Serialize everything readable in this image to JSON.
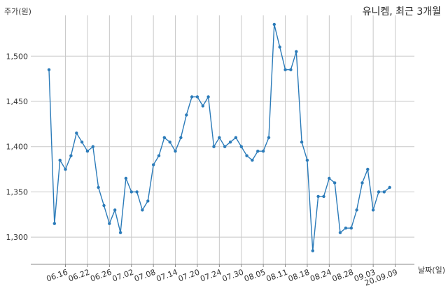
{
  "chart_data": {
    "type": "line",
    "title": "유니켐, 최근 3개월",
    "ylabel": "주가(원)",
    "xlabel": "날짜(일)",
    "ylim": [
      1270,
      1545
    ],
    "yticks": [
      1300,
      1350,
      1400,
      1450,
      1500
    ],
    "ytick_labels": [
      "1,300",
      "1,350",
      "1,400",
      "1,450",
      "1,500"
    ],
    "xtick_labels": [
      "06.16",
      "06.22",
      "06.26",
      "07.02",
      "07.08",
      "07.14",
      "07.20",
      "07.24",
      "07.30",
      "08.05",
      "08.11",
      "08.18",
      "08.24",
      "08.28",
      "09.03",
      "20.09.09"
    ],
    "xtick_index": [
      3,
      7,
      11,
      15,
      19,
      23,
      27,
      31,
      35,
      39,
      43,
      47,
      51,
      55,
      59,
      63
    ],
    "grid": true,
    "color": "#2b7bb9",
    "series": [
      {
        "values": [
          1485,
          1315,
          1385,
          1375,
          1390,
          1415,
          1405,
          1395,
          1400,
          1355,
          1335,
          1315,
          1330,
          1305,
          1365,
          1350,
          1350,
          1330,
          1340,
          1380,
          1390,
          1410,
          1405,
          1395,
          1410,
          1435,
          1455,
          1455,
          1445,
          1455,
          1400,
          1410,
          1400,
          1405,
          1410,
          1400,
          1390,
          1385,
          1395,
          1395,
          1410,
          1535,
          1510,
          1485,
          1485,
          1505,
          1405,
          1385,
          1285,
          1345,
          1345,
          1365,
          1360,
          1305,
          1310,
          1310,
          1330,
          1360,
          1375,
          1330,
          1350,
          1350,
          1355
        ]
      }
    ]
  }
}
